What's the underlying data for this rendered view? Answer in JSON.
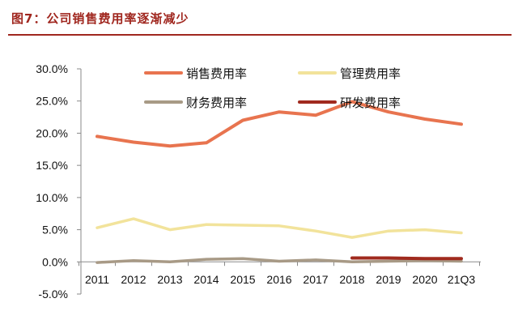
{
  "figure": {
    "title": "图7：公司销售费用率逐渐减少"
  },
  "colors": {
    "title": "#a0271f",
    "sales": "#e8744f",
    "admin": "#f2e39b",
    "finance": "#a89a86",
    "rd": "#a02a1e",
    "axis": "#8a8a8a"
  },
  "chart_data": {
    "type": "line",
    "categories": [
      "2011",
      "2012",
      "2013",
      "2014",
      "2015",
      "2016",
      "2017",
      "2018",
      "2019",
      "2020",
      "21Q3"
    ],
    "ylim": [
      -5,
      30
    ],
    "yticks": [
      -5,
      0,
      5,
      10,
      15,
      20,
      25,
      30
    ],
    "ytick_labels": [
      "-5.0%",
      "0.0%",
      "5.0%",
      "10.0%",
      "15.0%",
      "20.0%",
      "25.0%",
      "30.0%"
    ],
    "grid": false,
    "legend_position": "top",
    "series": [
      {
        "name": "销售费用率",
        "color": "#e8744f",
        "values": [
          19.5,
          18.6,
          18.0,
          18.5,
          22.0,
          23.3,
          22.8,
          24.9,
          23.3,
          22.2,
          21.4
        ]
      },
      {
        "name": "管理费用率",
        "color": "#f2e39b",
        "values": [
          5.3,
          6.7,
          5.0,
          5.8,
          5.7,
          5.6,
          4.8,
          3.8,
          4.8,
          5.0,
          4.5
        ]
      },
      {
        "name": "财务费用率",
        "color": "#a89a86",
        "values": [
          -0.1,
          0.2,
          0.0,
          0.4,
          0.5,
          0.1,
          0.3,
          0.0,
          0.1,
          0.2,
          0.1
        ]
      },
      {
        "name": "研发费用率",
        "color": "#a02a1e",
        "values": [
          null,
          null,
          null,
          null,
          null,
          null,
          null,
          0.6,
          0.6,
          0.5,
          0.5
        ]
      }
    ]
  }
}
